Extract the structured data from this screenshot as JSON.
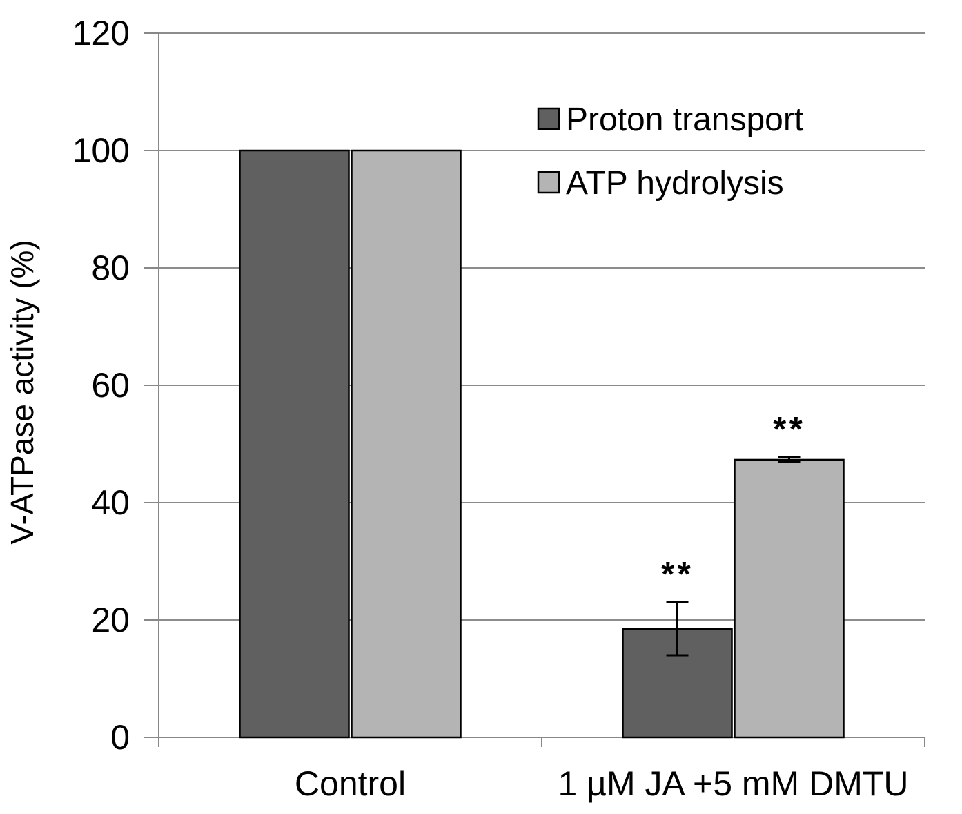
{
  "chart_data": {
    "type": "bar",
    "title": "",
    "xlabel": "",
    "ylabel": "V-ATPase activity (%)",
    "ylim": [
      0,
      120
    ],
    "yticks": [
      0,
      20,
      40,
      60,
      80,
      100,
      120
    ],
    "grid": true,
    "legend_position": "top-right",
    "categories": [
      "Control",
      "1 µM JA +5 mM DMTU"
    ],
    "series": [
      {
        "name": "Proton transport",
        "color": "#606060",
        "values": [
          100,
          18.5
        ],
        "errors": [
          0,
          4.5
        ],
        "annotations": [
          "",
          "**"
        ]
      },
      {
        "name": "ATP hydrolysis",
        "color": "#b4b4b4",
        "values": [
          100,
          47.3
        ],
        "errors": [
          0,
          0.4
        ],
        "annotations": [
          "",
          "**"
        ]
      }
    ]
  }
}
